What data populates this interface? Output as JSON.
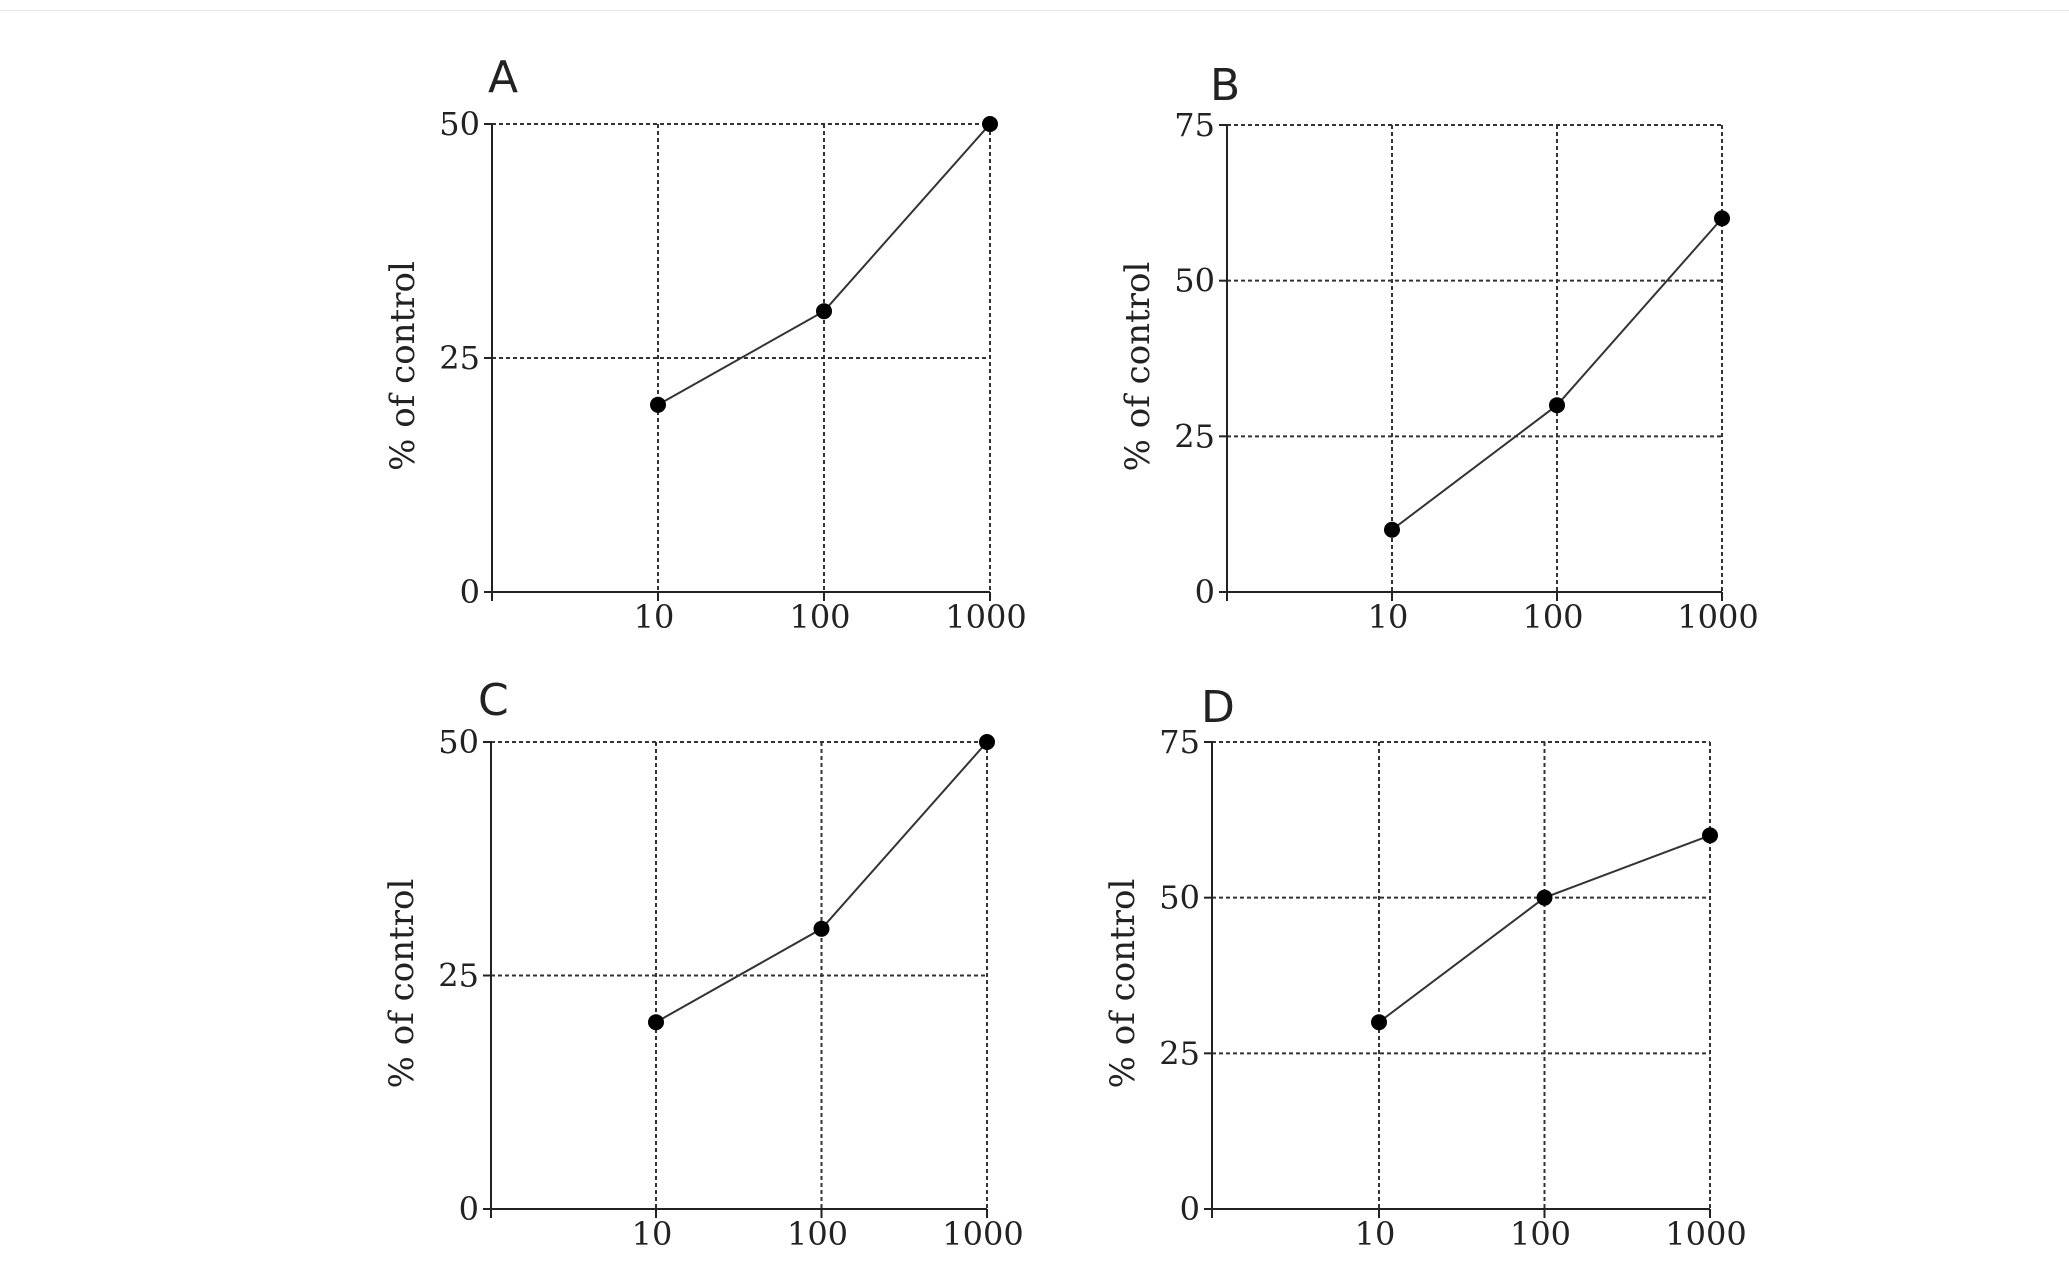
{
  "chart_data": [
    {
      "type": "line",
      "panel_label": "A",
      "x": [
        10,
        100,
        1000
      ],
      "x_ticks": [
        "10",
        "100",
        "1000"
      ],
      "x_scale": "log",
      "xlabel": "",
      "ylabel": "% of control",
      "ylim": [
        0,
        50
      ],
      "y_ticks": [
        0,
        25,
        50
      ],
      "grid": true,
      "series": [
        {
          "values": [
            20,
            30,
            50
          ]
        }
      ]
    },
    {
      "type": "line",
      "panel_label": "B",
      "x": [
        10,
        100,
        1000
      ],
      "x_ticks": [
        "10",
        "100",
        "1000"
      ],
      "x_scale": "log",
      "xlabel": "",
      "ylabel": "% of control",
      "ylim": [
        0,
        75
      ],
      "y_ticks": [
        0,
        25,
        50,
        75
      ],
      "grid": true,
      "series": [
        {
          "values": [
            10,
            30,
            60
          ]
        }
      ]
    },
    {
      "type": "line",
      "panel_label": "C",
      "x": [
        10,
        100,
        1000
      ],
      "x_ticks": [
        "10",
        "100",
        "1000"
      ],
      "x_scale": "log",
      "xlabel": "",
      "ylabel": "% of control",
      "ylim": [
        0,
        50
      ],
      "y_ticks": [
        0,
        25,
        50
      ],
      "grid": true,
      "series": [
        {
          "values": [
            20,
            30,
            50
          ]
        }
      ]
    },
    {
      "type": "line",
      "panel_label": "D",
      "x": [
        10,
        100,
        1000
      ],
      "x_ticks": [
        "10",
        "100",
        "1000"
      ],
      "x_scale": "log",
      "xlabel": "",
      "ylabel": "% of control",
      "ylim": [
        0,
        75
      ],
      "y_ticks": [
        0,
        25,
        50,
        75
      ],
      "grid": true,
      "series": [
        {
          "values": [
            30,
            50,
            60
          ]
        }
      ]
    }
  ]
}
